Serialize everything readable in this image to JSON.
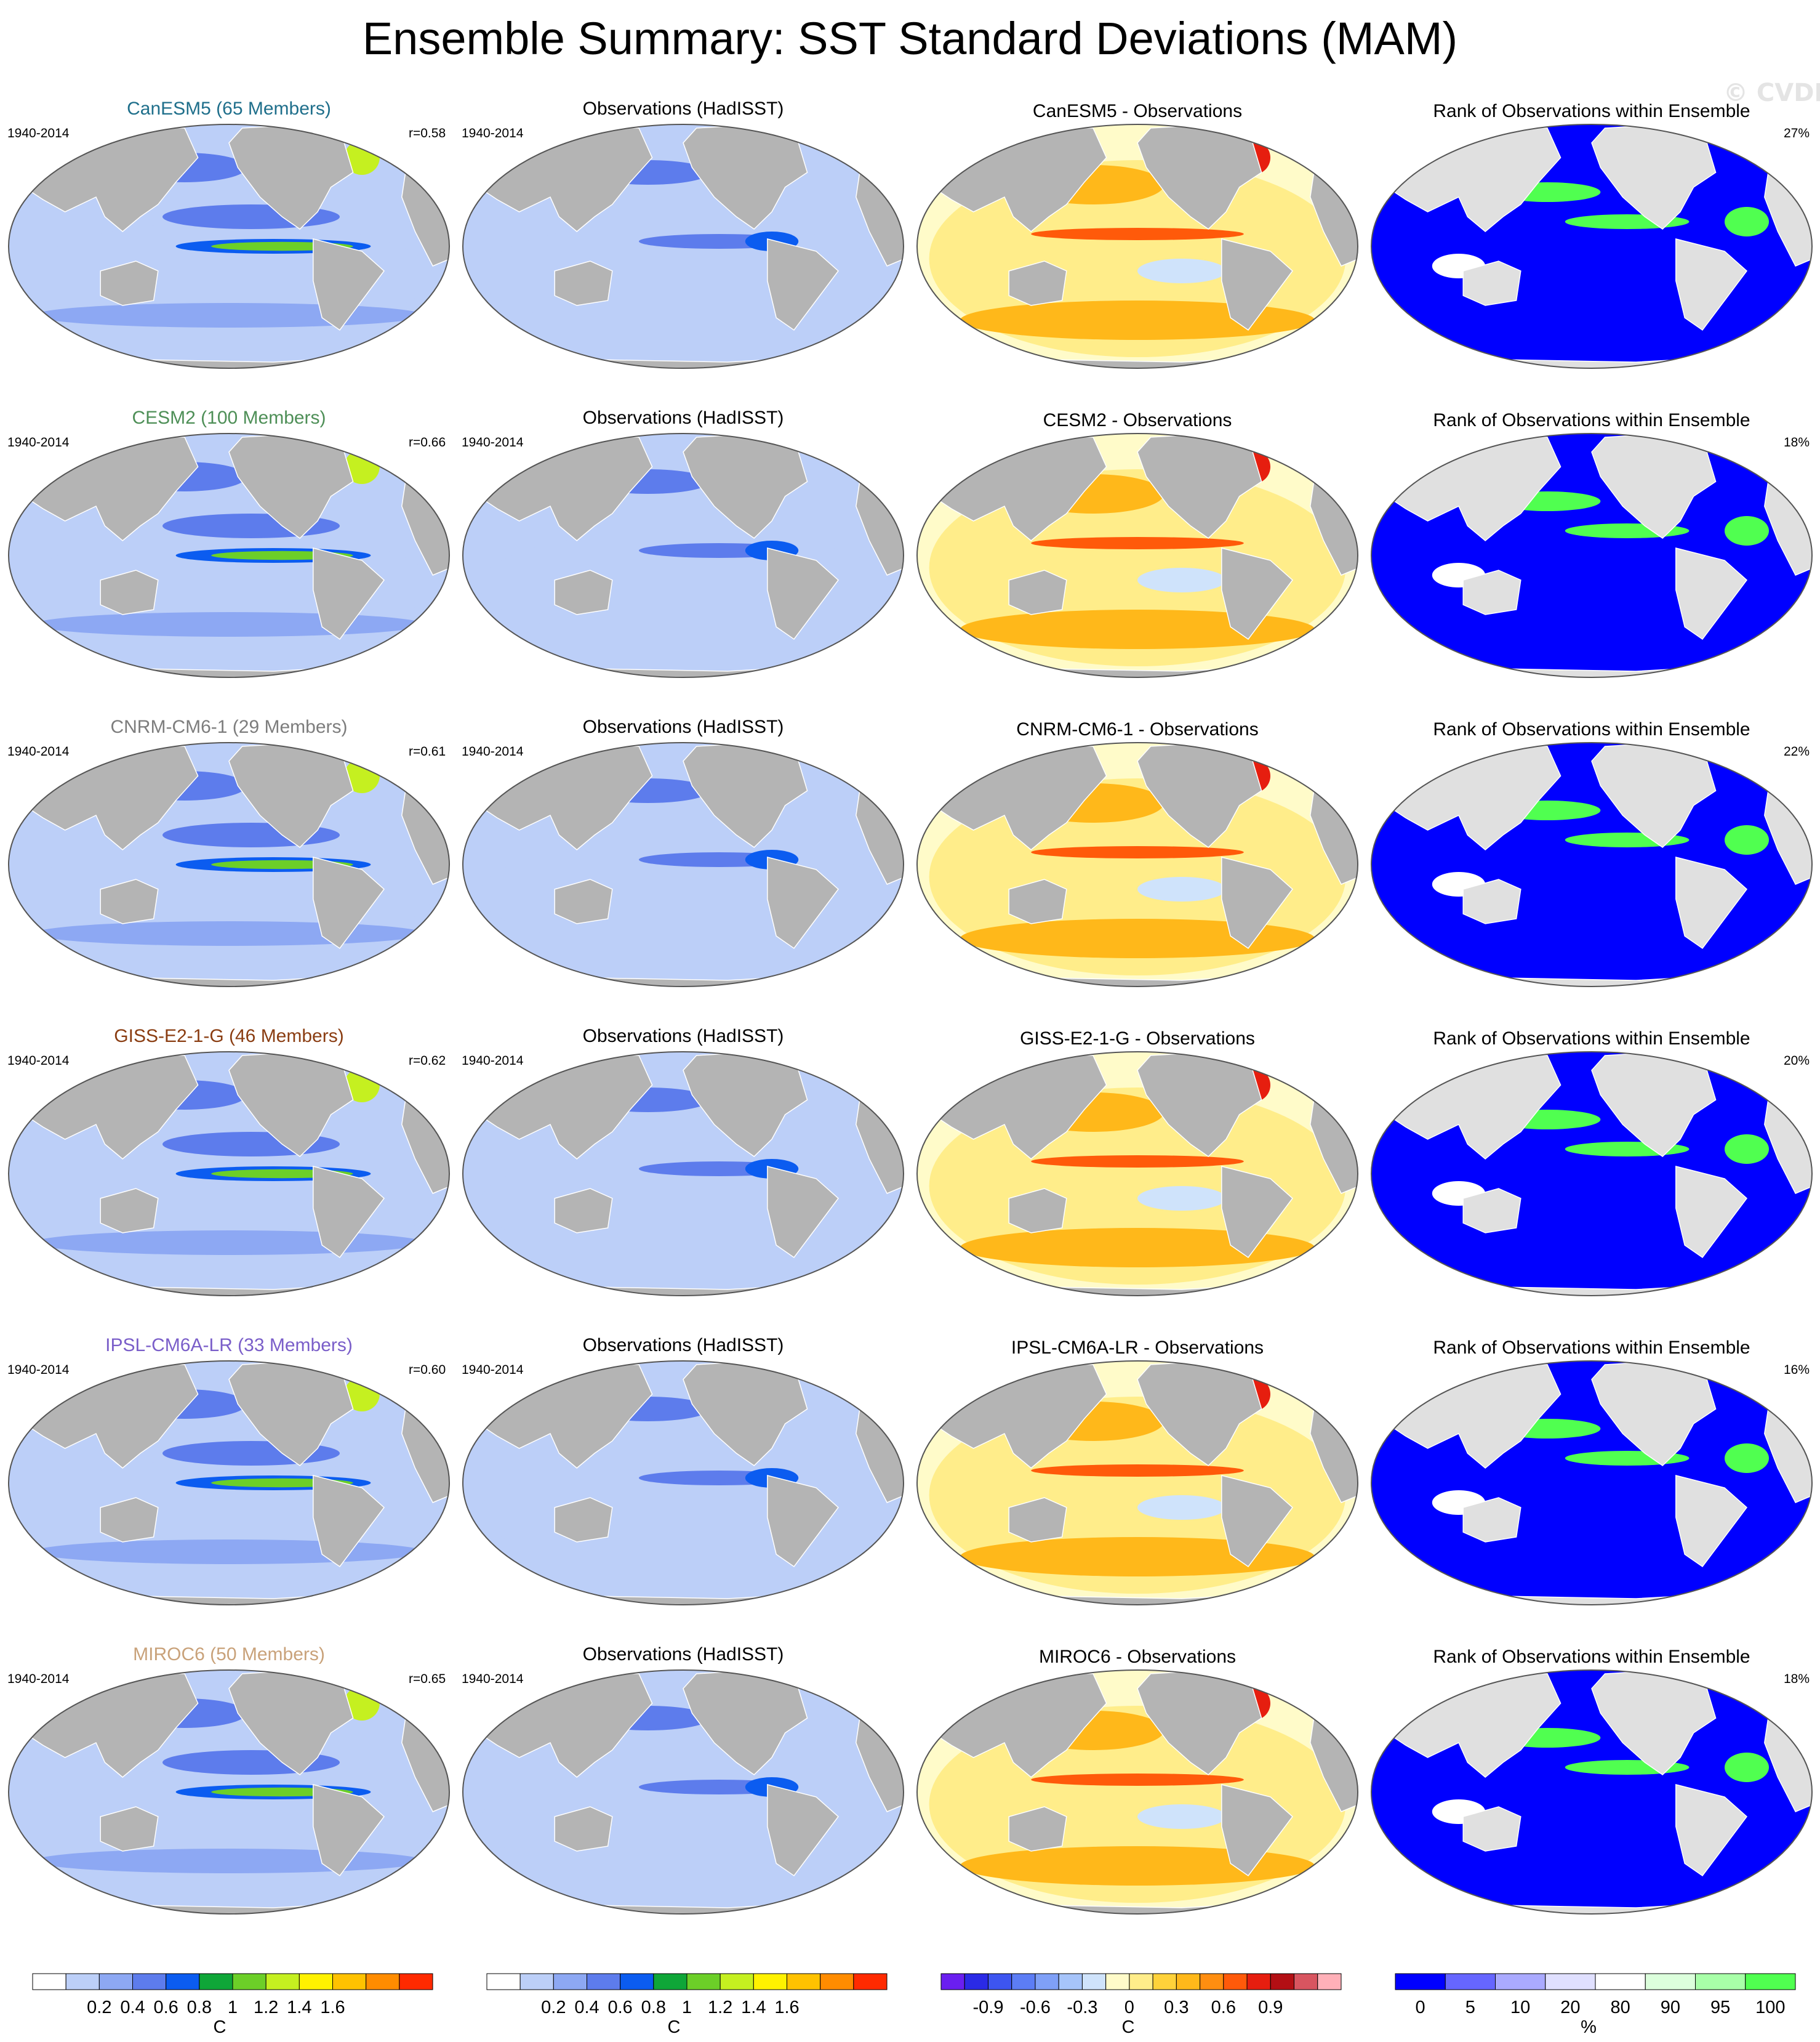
{
  "page": {
    "title": "Ensemble Summary: SST Standard Deviations (MAM)",
    "watermark": "© CVDP-LE"
  },
  "period": "1940-2014",
  "column_titles": {
    "observations": "Observations (HadISST)",
    "rank": "Rank of Observations within Ensemble"
  },
  "rows": [
    {
      "model": "CanESM5",
      "model_title": "CanESM5 (65 Members)",
      "title_color": "#1f6f8b",
      "r": "r=0.58",
      "diff_title": "CanESM5 - Observations",
      "rank_pct": "27%"
    },
    {
      "model": "CESM2",
      "model_title": "CESM2 (100 Members)",
      "title_color": "#4e8f57",
      "r": "r=0.66",
      "diff_title": "CESM2 - Observations",
      "rank_pct": "18%"
    },
    {
      "model": "CNRM-CM6-1",
      "model_title": "CNRM-CM6-1 (29 Members)",
      "title_color": "#7d7d7d",
      "r": "r=0.61",
      "diff_title": "CNRM-CM6-1 - Observations",
      "rank_pct": "22%"
    },
    {
      "model": "GISS-E2-1-G",
      "model_title": "GISS-E2-1-G (46 Members)",
      "title_color": "#8a3d12",
      "r": "r=0.62",
      "diff_title": "GISS-E2-1-G - Observations",
      "rank_pct": "20%"
    },
    {
      "model": "IPSL-CM6A-LR",
      "model_title": "IPSL-CM6A-LR (33 Members)",
      "title_color": "#7a5ec9",
      "r": "r=0.60",
      "diff_title": "IPSL-CM6A-LR - Observations",
      "rank_pct": "16%"
    },
    {
      "model": "MIROC6",
      "model_title": "MIROC6 (50 Members)",
      "title_color": "#c9a27a",
      "r": "r=0.65",
      "diff_title": "MIROC6 - Observations",
      "rank_pct": "18%"
    }
  ],
  "colorbars": [
    {
      "id": "model-sd",
      "unit": "C",
      "colors": [
        "#ffffff",
        "#bccff8",
        "#8da8f3",
        "#5d7cec",
        "#0b5cf0",
        "#0fa638",
        "#6ccf28",
        "#c5f020",
        "#fff200",
        "#ffc200",
        "#ff8c00",
        "#ff2a00"
      ],
      "ticks": [
        "0.2",
        "0.4",
        "0.6",
        "0.8",
        "1",
        "1.2",
        "1.4",
        "1.6"
      ]
    },
    {
      "id": "obs-sd",
      "unit": "C",
      "colors": [
        "#ffffff",
        "#bccff8",
        "#8da8f3",
        "#5d7cec",
        "#0b5cf0",
        "#0fa638",
        "#6ccf28",
        "#c5f020",
        "#fff200",
        "#ffc200",
        "#ff8c00",
        "#ff2a00"
      ],
      "ticks": [
        "0.2",
        "0.4",
        "0.6",
        "0.8",
        "1",
        "1.2",
        "1.4",
        "1.6"
      ]
    },
    {
      "id": "difference",
      "unit": "C",
      "colors": [
        "#6a1ff0",
        "#2a2ae6",
        "#3d55f0",
        "#5c7df5",
        "#7fa0f7",
        "#a6c4fa",
        "#cfe3fb",
        "#fffbc9",
        "#ffed8a",
        "#ffd23a",
        "#ffb81a",
        "#ff8e10",
        "#ff5a0a",
        "#e61e0f",
        "#b30f14",
        "#d85560",
        "#ffb0b8"
      ],
      "ticks": [
        "-0.9",
        "-0.6",
        "-0.3",
        "0",
        "0.3",
        "0.6",
        "0.9"
      ]
    },
    {
      "id": "rank",
      "unit": "%",
      "colors": [
        "#0000ff",
        "#6666ff",
        "#aaaaff",
        "#e0e0ff",
        "#ffffff",
        "#dcffdc",
        "#a8ffa8",
        "#50ff50"
      ],
      "ticks": [
        "0",
        "5",
        "10",
        "20",
        "80",
        "90",
        "95",
        "100"
      ]
    }
  ],
  "map_colors": {
    "land": "#b4b4b4",
    "land_light": "#e0e0e0",
    "coast": "#ffffff"
  }
}
